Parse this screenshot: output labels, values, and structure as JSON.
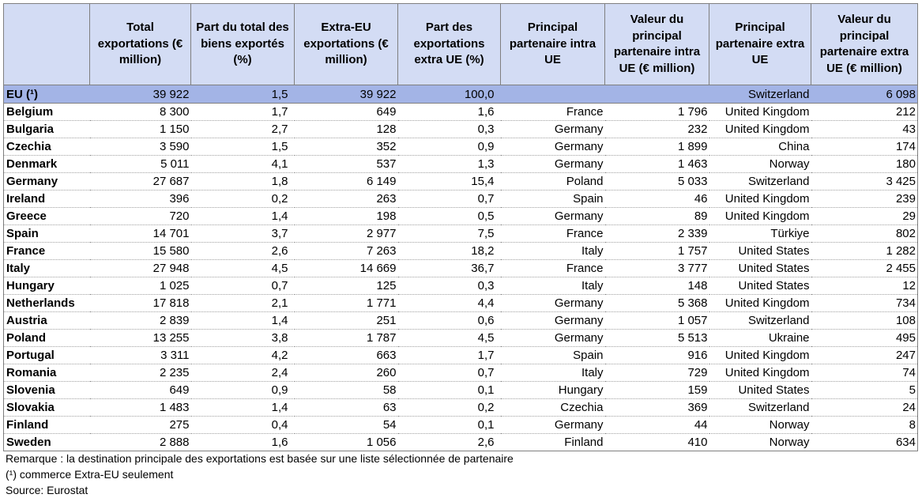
{
  "header": {
    "cols": [
      "",
      "Total exportations (€ million)",
      "Part du total des biens exportés (%)",
      "Extra-EU exportations (€ million)",
      "Part des exportations extra UE (%)",
      "Principal partenaire intra UE",
      "Valeur du principal partenaire intra UE (€ million)",
      "Principal partenaire extra UE",
      "Valeur du principal partenaire extra UE (€ million)"
    ]
  },
  "eu_row": [
    "EU (¹)",
    "39 922",
    "1,5",
    "39 922",
    "100,0",
    "",
    "",
    "Switzerland",
    "6 098"
  ],
  "rows": [
    [
      "Belgium",
      "8 300",
      "1,7",
      "649",
      "1,6",
      "France",
      "1 796",
      "United Kingdom",
      "212"
    ],
    [
      "Bulgaria",
      "1 150",
      "2,7",
      "128",
      "0,3",
      "Germany",
      "232",
      "United Kingdom",
      "43"
    ],
    [
      "Czechia",
      "3 590",
      "1,5",
      "352",
      "0,9",
      "Germany",
      "1 899",
      "China",
      "174"
    ],
    [
      "Denmark",
      "5 011",
      "4,1",
      "537",
      "1,3",
      "Germany",
      "1 463",
      "Norway",
      "180"
    ],
    [
      "Germany",
      "27 687",
      "1,8",
      "6 149",
      "15,4",
      "Poland",
      "5 033",
      "Switzerland",
      "3 425"
    ],
    [
      "Ireland",
      "396",
      "0,2",
      "263",
      "0,7",
      "Spain",
      "46",
      "United Kingdom",
      "239"
    ],
    [
      "Greece",
      "720",
      "1,4",
      "198",
      "0,5",
      "Germany",
      "89",
      "United Kingdom",
      "29"
    ],
    [
      "Spain",
      "14 701",
      "3,7",
      "2 977",
      "7,5",
      "France",
      "2 339",
      "Türkiye",
      "802"
    ],
    [
      "France",
      "15 580",
      "2,6",
      "7 263",
      "18,2",
      "Italy",
      "1 757",
      "United States",
      "1 282"
    ],
    [
      "Italy",
      "27 948",
      "4,5",
      "14 669",
      "36,7",
      "France",
      "3 777",
      "United States",
      "2 455"
    ],
    [
      "Hungary",
      "1 025",
      "0,7",
      "125",
      "0,3",
      "Italy",
      "148",
      "United States",
      "12"
    ],
    [
      "Netherlands",
      "17 818",
      "2,1",
      "1 771",
      "4,4",
      "Germany",
      "5 368",
      "United Kingdom",
      "734"
    ],
    [
      "Austria",
      "2 839",
      "1,4",
      "251",
      "0,6",
      "Germany",
      "1 057",
      "Switzerland",
      "108"
    ],
    [
      "Poland",
      "13 255",
      "3,8",
      "1 787",
      "4,5",
      "Germany",
      "5 513",
      "Ukraine",
      "495"
    ],
    [
      "Portugal",
      "3 311",
      "4,2",
      "663",
      "1,7",
      "Spain",
      "916",
      "United Kingdom",
      "247"
    ],
    [
      "Romania",
      "2 235",
      "2,4",
      "260",
      "0,7",
      "Italy",
      "729",
      "United Kingdom",
      "74"
    ],
    [
      "Slovenia",
      "649",
      "0,9",
      "58",
      "0,1",
      "Hungary",
      "159",
      "United States",
      "5"
    ],
    [
      "Slovakia",
      "1 483",
      "1,4",
      "63",
      "0,2",
      "Czechia",
      "369",
      "Switzerland",
      "24"
    ],
    [
      "Finland",
      "275",
      "0,4",
      "54",
      "0,1",
      "Germany",
      "44",
      "Norway",
      "8"
    ],
    [
      "Sweden",
      "2 888",
      "1,6",
      "1 056",
      "2,6",
      "Finland",
      "410",
      "Norway",
      "634"
    ]
  ],
  "notes": [
    "Remarque : la destination principale des exportations est basée sur une liste sélectionnée de partenaire",
    "(¹) commerce Extra-EU seulement",
    "Source: Eurostat"
  ]
}
